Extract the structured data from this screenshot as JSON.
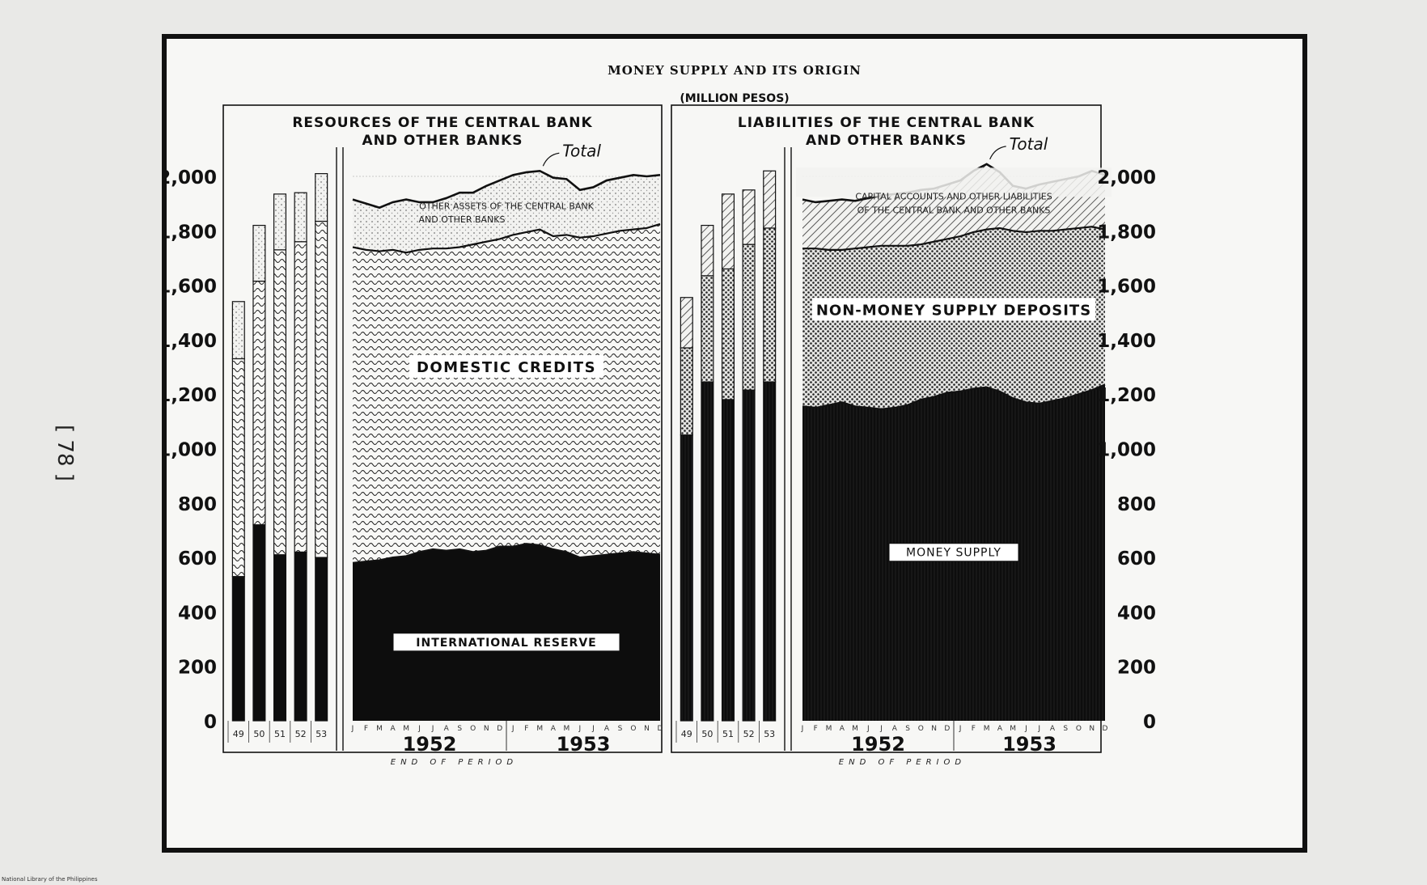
{
  "page_number": "[ 78 ]",
  "footer_credit": "National Library of the Philippines",
  "chart_data": {
    "title": "MONEY SUPPLY AND ITS ORIGIN",
    "unit": "(MILLION PESOS)",
    "xlabel": "END OF PERIOD",
    "ylim": [
      0,
      2000
    ],
    "y_ticks": [
      "0",
      "200",
      "400",
      "600",
      "800",
      "1,000",
      "1,200",
      "1,400",
      "1,600",
      "1,800",
      "2,000"
    ],
    "years": [
      "1952",
      "1953"
    ],
    "months": [
      "J",
      "F",
      "M",
      "A",
      "M",
      "J",
      "J",
      "A",
      "S",
      "O",
      "N",
      "D"
    ],
    "panels": [
      {
        "title_line1": "RESOURCES OF THE CENTRAL BANK",
        "title_line2": "AND OTHER BANKS",
        "total_label": "Total",
        "annual": {
          "categories": [
            "49",
            "50",
            "51",
            "52",
            "53"
          ],
          "series": [
            {
              "name": "INTERNATIONAL RESERVE",
              "values": [
                530,
                720,
                610,
                620,
                600
              ]
            },
            {
              "name": "DOMESTIC CREDITS",
              "values": [
                800,
                895,
                1120,
                1140,
                1235
              ]
            },
            {
              "name": "OTHER ASSETS OF THE CENTRAL BANK AND OTHER BANKS",
              "values": [
                210,
                205,
                205,
                180,
                175
              ]
            }
          ]
        },
        "monthly": {
          "series": [
            {
              "name": "INTERNATIONAL RESERVE",
              "values": [
                580,
                585,
                590,
                600,
                605,
                620,
                630,
                625,
                630,
                620,
                625,
                640,
                640,
                650,
                645,
                630,
                620,
                600,
                605,
                610,
                615,
                620,
                615,
                610
              ]
            },
            {
              "name": "DOMESTIC CREDITS",
              "values": [
                1160,
                1145,
                1135,
                1130,
                1115,
                1110,
                1105,
                1110,
                1110,
                1130,
                1135,
                1130,
                1145,
                1145,
                1160,
                1150,
                1165,
                1175,
                1175,
                1180,
                1185,
                1185,
                1195,
                1215
              ]
            },
            {
              "name": "OTHER ASSETS OF THE CENTRAL BANK AND OTHER BANKS",
              "values": [
                175,
                170,
                160,
                175,
                195,
                175,
                170,
                185,
                200,
                190,
                205,
                215,
                220,
                220,
                215,
                215,
                205,
                175,
                180,
                195,
                195,
                200,
                190,
                180
              ]
            }
          ]
        },
        "labels": {
          "top": "OTHER ASSETS OF THE CENTRAL BANK AND OTHER BANKS",
          "mid": "DOMESTIC CREDITS",
          "bottom": "INTERNATIONAL RESERVE"
        }
      },
      {
        "title_line1": "LIABILITIES OF THE CENTRAL BANK",
        "title_line2": "AND OTHER BANKS",
        "total_label": "Total",
        "annual": {
          "categories": [
            "49",
            "50",
            "51",
            "52",
            "53"
          ],
          "series": [
            {
              "name": "MONEY SUPPLY",
              "values": [
                1050,
                1245,
                1180,
                1215,
                1245
              ]
            },
            {
              "name": "NON-MONEY SUPPLY DEPOSITS",
              "values": [
                320,
                390,
                480,
                535,
                565
              ]
            },
            {
              "name": "CAPITAL ACCOUNTS AND OTHER LIABILITIES OF THE CENTRAL BANK AND OTHER BANKS",
              "values": [
                185,
                185,
                275,
                200,
                210
              ]
            }
          ]
        },
        "monthly": {
          "series": [
            {
              "name": "MONEY SUPPLY",
              "values": [
                1155,
                1150,
                1160,
                1170,
                1155,
                1150,
                1145,
                1150,
                1160,
                1180,
                1190,
                1205,
                1210,
                1220,
                1225,
                1210,
                1185,
                1170,
                1165,
                1175,
                1185,
                1200,
                1215,
                1235
              ]
            },
            {
              "name": "NON-MONEY SUPPLY DEPOSITS",
              "values": [
                580,
                585,
                570,
                560,
                580,
                590,
                600,
                595,
                585,
                570,
                570,
                565,
                570,
                575,
                580,
                600,
                615,
                625,
                635,
                625,
                620,
                610,
                600,
                570
              ]
            },
            {
              "name": "CAPITAL ACCOUNTS AND OTHER LIABILITIES OF THE CENTRAL BANK AND OTHER BANKS",
              "values": [
                180,
                170,
                180,
                185,
                175,
                180,
                185,
                190,
                195,
                200,
                195,
                200,
                205,
                225,
                240,
                205,
                165,
                160,
                170,
                180,
                185,
                190,
                205,
                200
              ]
            }
          ]
        },
        "labels": {
          "top": "CAPITAL ACCOUNTS AND OTHER LIABILITIES OF THE CENTRAL BANK AND OTHER BANKS",
          "mid": "NON-MONEY SUPPLY DEPOSITS",
          "bottom": "MONEY SUPPLY"
        }
      }
    ]
  }
}
